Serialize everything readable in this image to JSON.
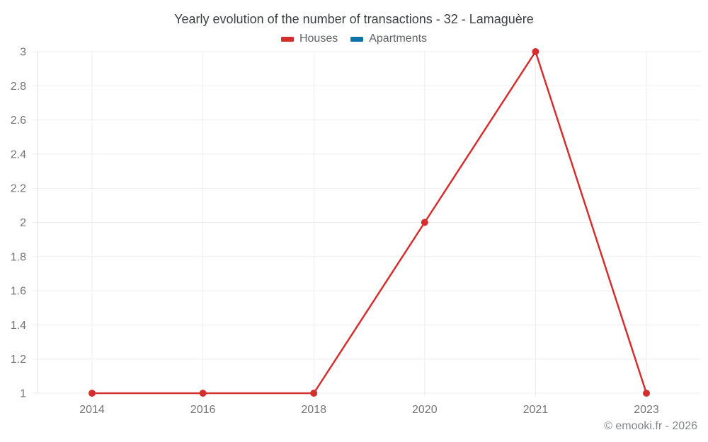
{
  "title": "Yearly evolution of the number of transactions - 32 - Lamaguère",
  "legend": [
    {
      "label": "Houses",
      "color": "#d32f2f"
    },
    {
      "label": "Apartments",
      "color": "#0e73a5"
    }
  ],
  "footer": "© emooki.fr - 2026",
  "colors": {
    "grid": "#ededed",
    "axis": "#e0e0e0",
    "tick_label": "#757575",
    "title": "#3c4043"
  },
  "chart_data": {
    "type": "line",
    "title": "Yearly evolution of the number of transactions - 32 - Lamaguère",
    "categories": [
      "2014",
      "2016",
      "2018",
      "2020",
      "2021",
      "2023"
    ],
    "series": [
      {
        "name": "Houses",
        "color": "#d32f2f",
        "values": [
          1,
          1,
          1,
          2,
          3,
          1
        ]
      },
      {
        "name": "Apartments",
        "color": "#0e73a5",
        "values": []
      }
    ],
    "xlabel": "",
    "ylabel": "",
    "ylim": [
      1,
      3
    ],
    "y_ticks": [
      1,
      1.2,
      1.4,
      1.6,
      1.8,
      2,
      2.2,
      2.4,
      2.6,
      2.8,
      3
    ],
    "y_tick_labels": [
      "1",
      "1.2",
      "1.4",
      "1.6",
      "1.8",
      "2",
      "2.2",
      "2.4",
      "2.6",
      "2.8",
      "3"
    ],
    "grid": true,
    "legend_position": "top",
    "marker": "circle",
    "marker_radius": 5
  }
}
